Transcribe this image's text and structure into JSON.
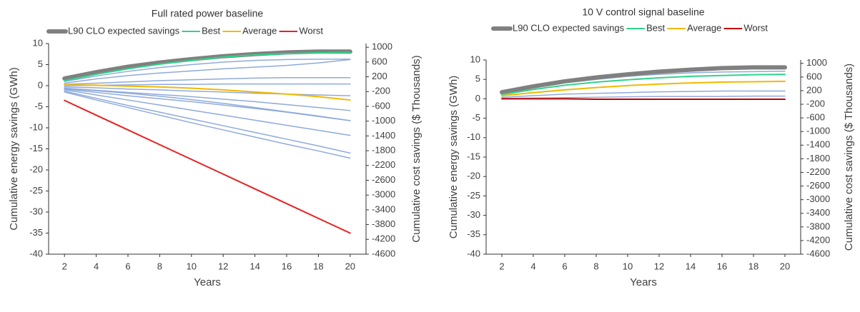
{
  "chart_data": [
    {
      "type": "line",
      "title": "Full rated power baseline",
      "xlabel": "Years",
      "ylabel": "Cumulative energy savings (GWh)",
      "y2label": "Cumulative cost savings ($ Thousands)",
      "x": [
        2,
        4,
        6,
        8,
        10,
        12,
        14,
        16,
        18,
        20
      ],
      "xlim": [
        1,
        21
      ],
      "xticks": [
        2,
        4,
        6,
        8,
        10,
        12,
        14,
        16,
        18,
        20
      ],
      "ylim": [
        -40,
        10
      ],
      "yticks": [
        10,
        5,
        0,
        -5,
        -10,
        -15,
        -20,
        -25,
        -30,
        -35,
        -40
      ],
      "y2lim": [
        -4600,
        1100
      ],
      "y2ticks": [
        1000,
        600,
        200,
        -200,
        -600,
        -1000,
        -1400,
        -1800,
        -2200,
        -2600,
        -3000,
        -3400,
        -3800,
        -4200,
        -4600
      ],
      "legend": "top",
      "series": [
        {
          "color": "#8faadc",
          "line_width": 1.5,
          "values": [
            1.0,
            2.3,
            3.4,
            4.3,
            5.0,
            5.6,
            6.0,
            6.2,
            6.3,
            6.3
          ]
        },
        {
          "color": "#8faadc",
          "line_width": 1.5,
          "values": [
            0.6,
            1.6,
            2.4,
            3.0,
            3.5,
            4.0,
            4.4,
            4.8,
            5.4,
            6.2
          ]
        },
        {
          "color": "#8faadc",
          "line_width": 1.5,
          "values": [
            0.3,
            0.6,
            0.9,
            1.2,
            1.4,
            1.6,
            1.8,
            1.9,
            1.9,
            1.9
          ]
        },
        {
          "color": "#8faadc",
          "line_width": 1.5,
          "values": [
            0,
            0.1,
            0.2,
            0.3,
            0.3,
            0.4,
            0.4,
            0.4,
            0.4,
            0.4
          ]
        },
        {
          "color": "#8faadc",
          "line_width": 1.5,
          "values": [
            -0.3,
            -0.5,
            -0.8,
            -1.0,
            -1.3,
            -1.5,
            -1.8,
            -2.0,
            -2.2,
            -2.4
          ]
        },
        {
          "color": "#8faadc",
          "line_width": 1.5,
          "values": [
            -0.6,
            -1.1,
            -1.6,
            -2.1,
            -2.6,
            -3.2,
            -3.8,
            -4.5,
            -5.2,
            -5.9
          ]
        },
        {
          "color": "#8faadc",
          "line_width": 1.5,
          "values": [
            -0.8,
            -1.6,
            -2.4,
            -3.1,
            -3.8,
            -4.6,
            -5.4,
            -6.3,
            -7.3,
            -8.3
          ]
        },
        {
          "color": "#8faadc",
          "line_width": 1.5,
          "values": [
            -0.7,
            -1.2,
            -1.8,
            -2.5,
            -3.3,
            -4.2,
            -5.2,
            -6.2,
            -7.2,
            -8.3
          ]
        },
        {
          "color": "#8faadc",
          "line_width": 1.5,
          "values": [
            -1.0,
            -2.2,
            -3.4,
            -4.6,
            -5.8,
            -7.0,
            -8.2,
            -9.4,
            -10.6,
            -11.8
          ]
        },
        {
          "color": "#8faadc",
          "line_width": 1.5,
          "values": [
            -1.3,
            -3.0,
            -4.7,
            -6.3,
            -7.9,
            -9.5,
            -11.1,
            -12.7,
            -14.3,
            -16.0
          ]
        },
        {
          "color": "#8faadc",
          "line_width": 1.5,
          "values": [
            -1.5,
            -3.4,
            -5.2,
            -7.0,
            -8.8,
            -10.5,
            -12.2,
            -13.9,
            -15.5,
            -17.2
          ]
        },
        {
          "name": "L90 CLO expected savings",
          "color": "#808080",
          "line_width": 6,
          "values": [
            1.7,
            3.2,
            4.5,
            5.5,
            6.3,
            7.0,
            7.5,
            7.9,
            8.1,
            8.1
          ]
        },
        {
          "name": "Best",
          "color": "#2fd38a",
          "line_width": 2,
          "values": [
            1.2,
            2.7,
            4.0,
            5.1,
            6.0,
            6.8,
            7.3,
            7.6,
            7.8,
            7.9
          ]
        },
        {
          "name": "Average",
          "color": "#f2b800",
          "line_width": 2,
          "values": [
            0.2,
            0.1,
            -0.1,
            -0.3,
            -0.6,
            -1.0,
            -1.5,
            -2.0,
            -2.6,
            -3.4
          ]
        },
        {
          "name": "Worst",
          "color": "#e82020",
          "line_width": 2,
          "values": [
            -3.5,
            -7.0,
            -10.5,
            -14.0,
            -17.5,
            -21.0,
            -24.5,
            -28.0,
            -31.5,
            -35.0
          ]
        }
      ]
    },
    {
      "type": "line",
      "title": "10 V control signal baseline",
      "xlabel": "Years",
      "ylabel": "Cumulative energy savings (GWh)",
      "y2label": "Cumulative cost savings ($ Thousands)",
      "x": [
        2,
        4,
        6,
        8,
        10,
        12,
        14,
        16,
        18,
        20
      ],
      "xlim": [
        1,
        21
      ],
      "xticks": [
        2,
        4,
        6,
        8,
        10,
        12,
        14,
        16,
        18,
        20
      ],
      "ylim": [
        -40,
        10
      ],
      "yticks": [
        10,
        5,
        0,
        -5,
        -10,
        -15,
        -20,
        -25,
        -30,
        -35,
        -40
      ],
      "y2lim": [
        -4600,
        1100
      ],
      "y2ticks": [
        1000,
        600,
        200,
        -200,
        -600,
        -1000,
        -1400,
        -1800,
        -2200,
        -2600,
        -3000,
        -3400,
        -3800,
        -4200,
        -4600
      ],
      "legend": "top",
      "series": [
        {
          "color": "#8faadc",
          "line_width": 1.5,
          "values": [
            1.3,
            2.8,
            4.1,
            5.0,
            5.8,
            6.3,
            6.7,
            6.9,
            7.0,
            7.1
          ]
        },
        {
          "color": "#8faadc",
          "line_width": 1.5,
          "values": [
            0.4,
            0.8,
            1.2,
            1.4,
            1.6,
            1.8,
            1.9,
            2.0,
            2.0,
            2.0
          ]
        },
        {
          "color": "#8faadc",
          "line_width": 1.5,
          "values": [
            0.1,
            0.2,
            0.3,
            0.4,
            0.5,
            0.6,
            0.6,
            0.6,
            0.7,
            0.7
          ]
        },
        {
          "name": "L90 CLO expected savings",
          "color": "#808080",
          "line_width": 6,
          "values": [
            1.7,
            3.2,
            4.5,
            5.5,
            6.3,
            7.0,
            7.5,
            7.9,
            8.1,
            8.1
          ]
        },
        {
          "name": "Best",
          "color": "#2fd38a",
          "line_width": 2,
          "values": [
            1.1,
            2.4,
            3.5,
            4.3,
            4.9,
            5.4,
            5.8,
            6.0,
            6.2,
            6.3
          ]
        },
        {
          "name": "Average",
          "color": "#f2b800",
          "line_width": 2,
          "values": [
            0.8,
            1.6,
            2.3,
            2.9,
            3.4,
            3.8,
            4.1,
            4.3,
            4.4,
            4.5
          ]
        },
        {
          "name": "Worst",
          "color": "#c00000",
          "line_width": 2,
          "values": [
            0,
            0,
            0,
            -0.1,
            -0.1,
            -0.1,
            -0.1,
            -0.1,
            -0.1,
            -0.1
          ]
        }
      ]
    }
  ]
}
